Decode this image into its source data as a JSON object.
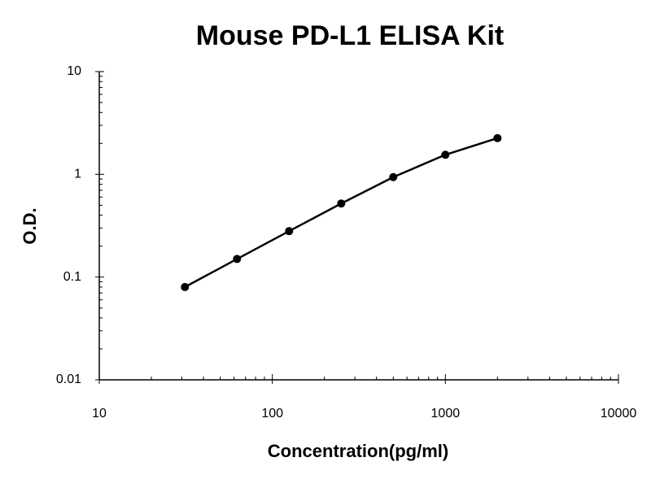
{
  "chart_data": {
    "type": "line",
    "title": "Mouse PD-L1 ELISA Kit",
    "x_label": "Concentration(pg/ml)",
    "y_label": "O.D.",
    "x": [
      31.25,
      62.5,
      125,
      250,
      500,
      1000,
      2000
    ],
    "series": [
      {
        "color": "#000000",
        "values": [
          0.08,
          0.15,
          0.28,
          0.52,
          0.94,
          1.55,
          2.25
        ]
      }
    ],
    "xscale": "log",
    "yscale": "log",
    "xlim": [
      10,
      10000
    ],
    "xticks": [
      10,
      100,
      1000,
      10000
    ],
    "ylim": [
      0.01,
      10
    ],
    "yticks": [
      0.01,
      0.1,
      1,
      10
    ],
    "markers": true
  }
}
